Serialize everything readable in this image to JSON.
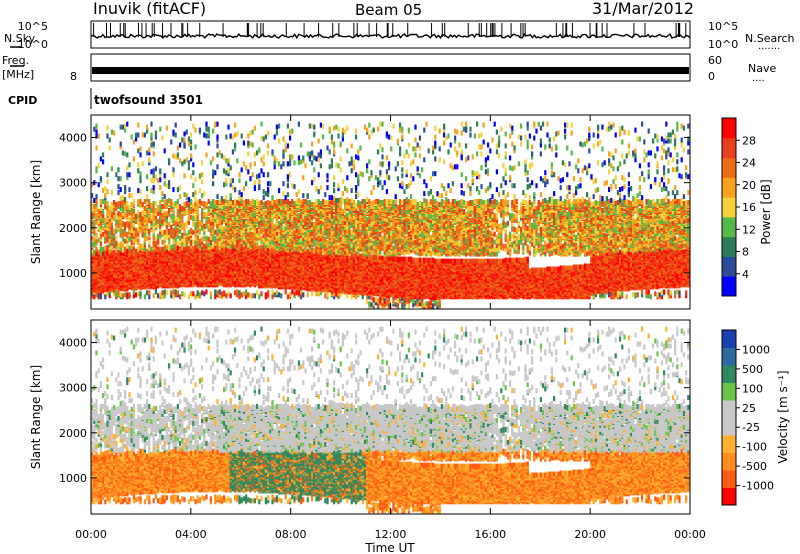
{
  "header": {
    "station": "Inuvik (fitACF)",
    "beam": "Beam 05",
    "date": "31/Mar/2012"
  },
  "side_labels": {
    "nsky": "N.Sky",
    "nsearch": "N.Search",
    "nsearch_dots": "·······",
    "freq": "Freq.",
    "freq_unit": "[MHz]",
    "nave": "Nave",
    "nave_dots": "····",
    "cpid": "CPID"
  },
  "strip_ticks": {
    "noise_left": [
      "10^5",
      "10^0"
    ],
    "noise_right": [
      "10^5",
      "10^0"
    ],
    "freq_left": [
      "8"
    ],
    "nave_right": [
      "60",
      "0"
    ]
  },
  "cpid_text": "twofsound 3501",
  "colors": {
    "power": [
      "#0000ff",
      "#2c4b9a",
      "#2e7d5a",
      "#55b848",
      "#f4d23a",
      "#f6a21c",
      "#ef6a14",
      "#e8401a",
      "#ff0000"
    ],
    "velocity": [
      "#ff0000",
      "#ff5a14",
      "#ff8c1c",
      "#ffb030",
      "#c8c8c8",
      "#c8c8c8",
      "#6cc24a",
      "#2e8a5e",
      "#2c6aa0",
      "#1a3fb0"
    ]
  },
  "chart_data": [
    {
      "type": "heatmap",
      "name": "power",
      "ylabel": "Slant Range [km]",
      "ylim": [
        200,
        4500
      ],
      "yticks": [
        1000,
        2000,
        3000,
        4000
      ],
      "xlim": [
        0,
        24
      ],
      "colorbar": {
        "label": "Power [dB]",
        "ticks": [
          "4",
          "8",
          "12",
          "16",
          "20",
          "24",
          "28"
        ],
        "range": [
          0,
          30
        ]
      },
      "echo_bands": [
        {
          "range_km": [
            600,
            1500
          ],
          "level": "strong (24-30 dB)"
        },
        {
          "range_km": [
            1400,
            2600
          ],
          "level": "moderate (12-24 dB)"
        },
        {
          "range_km": [
            2500,
            4300
          ],
          "level": "sparse weak (4-16 dB)"
        }
      ]
    },
    {
      "type": "heatmap",
      "name": "velocity",
      "ylabel": "Slant Range [km]",
      "ylim": [
        200,
        4500
      ],
      "yticks": [
        1000,
        2000,
        3000,
        4000
      ],
      "xlim": [
        0,
        24
      ],
      "xticks": [
        "00:00",
        "04:00",
        "08:00",
        "12:00",
        "16:00",
        "20:00",
        "00:00"
      ],
      "xlabel": "Time UT",
      "colorbar": {
        "label": "Velocity [m s⁻¹]",
        "ticks": [
          "1000",
          "500",
          "100",
          "25",
          "-25",
          "-100",
          "-500",
          "-1000"
        ]
      }
    }
  ]
}
